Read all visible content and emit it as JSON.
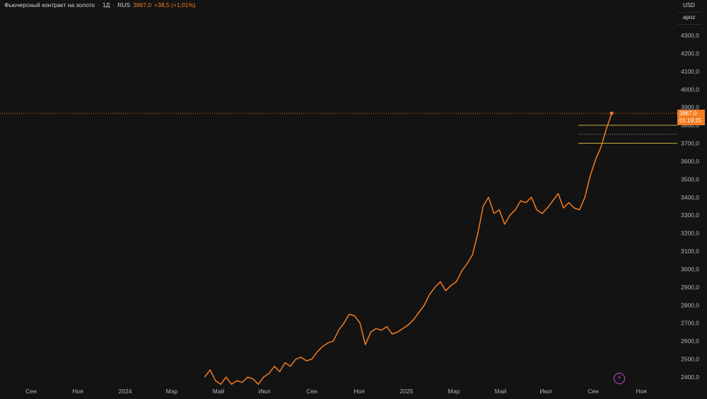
{
  "header": {
    "symbol_name": "Фьючерсный контракт на золото",
    "interval": "1Д",
    "exchange": "RUS",
    "last_price": "3867,0",
    "change": "+38,5 (+1,01%)"
  },
  "axis_controls": {
    "currency": "USD",
    "scale_mode": "apoz"
  },
  "price_tag": {
    "price": "3867,0",
    "countdown": "01:19:25"
  },
  "colors": {
    "background": "#131313",
    "line": "#f57c20",
    "level_line": "#d8c24a",
    "text": "#b2b5be"
  },
  "chart_data": {
    "type": "line",
    "title": "Фьючерсный контракт на золото · 1Д · RUS",
    "y_tick_labels": [
      "2400,0",
      "2500,0",
      "2600,0",
      "2700,0",
      "2800,0",
      "2900,0",
      "3000,0",
      "3100,0",
      "3200,0",
      "3300,0",
      "3400,0",
      "3500,0",
      "3600,0",
      "3700,0",
      "3800,0",
      "3900,0",
      "4000,0",
      "4100,0",
      "4200,0",
      "4300,0"
    ],
    "x_tick_labels": [
      "Сен",
      "Ноя",
      "2024",
      "Мар",
      "Май",
      "Июл",
      "Сен",
      "Ноя",
      "2025",
      "Мар",
      "Май",
      "Июл",
      "Сен",
      "Ноя"
    ],
    "ylim": [
      2375,
      4400
    ],
    "last_value": 3867.0,
    "horizontal_levels": [
      3800,
      3750,
      3700
    ],
    "series": [
      {
        "x": [
          "2024-04-15",
          "2024-04-22",
          "2024-04-29",
          "2024-05-06",
          "2024-05-13",
          "2024-05-20",
          "2024-05-27",
          "2024-06-03",
          "2024-06-10",
          "2024-06-17",
          "2024-06-24",
          "2024-07-01",
          "2024-07-08",
          "2024-07-15",
          "2024-07-22",
          "2024-07-29",
          "2024-08-05",
          "2024-08-12",
          "2024-08-19",
          "2024-08-26",
          "2024-09-02",
          "2024-09-09",
          "2024-09-16",
          "2024-09-23",
          "2024-09-30",
          "2024-10-07",
          "2024-10-14",
          "2024-10-21",
          "2024-10-28",
          "2024-11-04",
          "2024-11-11",
          "2024-11-18",
          "2024-11-25",
          "2024-12-02",
          "2024-12-09",
          "2024-12-16",
          "2024-12-23",
          "2024-12-30",
          "2025-01-06",
          "2025-01-13",
          "2025-01-20",
          "2025-01-27",
          "2025-02-03",
          "2025-02-10",
          "2025-02-17",
          "2025-02-24",
          "2025-03-03",
          "2025-03-10",
          "2025-03-17",
          "2025-03-24",
          "2025-03-31",
          "2025-04-07",
          "2025-04-14",
          "2025-04-21",
          "2025-04-28",
          "2025-05-05",
          "2025-05-12",
          "2025-05-19",
          "2025-05-26",
          "2025-06-02",
          "2025-06-09",
          "2025-06-16",
          "2025-06-23",
          "2025-06-30",
          "2025-07-07",
          "2025-07-14",
          "2025-07-21",
          "2025-07-28",
          "2025-08-04",
          "2025-08-11",
          "2025-08-18",
          "2025-08-25",
          "2025-09-01",
          "2025-09-08",
          "2025-09-15",
          "2025-09-22",
          "2025-09-29"
        ],
        "values": [
          2400,
          2440,
          2380,
          2360,
          2400,
          2360,
          2380,
          2370,
          2400,
          2390,
          2360,
          2400,
          2420,
          2460,
          2430,
          2480,
          2460,
          2500,
          2510,
          2490,
          2500,
          2540,
          2570,
          2590,
          2600,
          2660,
          2700,
          2750,
          2740,
          2700,
          2580,
          2650,
          2670,
          2660,
          2680,
          2640,
          2650,
          2670,
          2690,
          2720,
          2760,
          2800,
          2860,
          2900,
          2930,
          2880,
          2910,
          2930,
          2990,
          3030,
          3080,
          3200,
          3350,
          3400,
          3310,
          3330,
          3250,
          3300,
          3330,
          3380,
          3370,
          3400,
          3330,
          3310,
          3340,
          3380,
          3420,
          3340,
          3370,
          3340,
          3330,
          3400,
          3520,
          3610,
          3680,
          3780,
          3867
        ]
      }
    ]
  }
}
